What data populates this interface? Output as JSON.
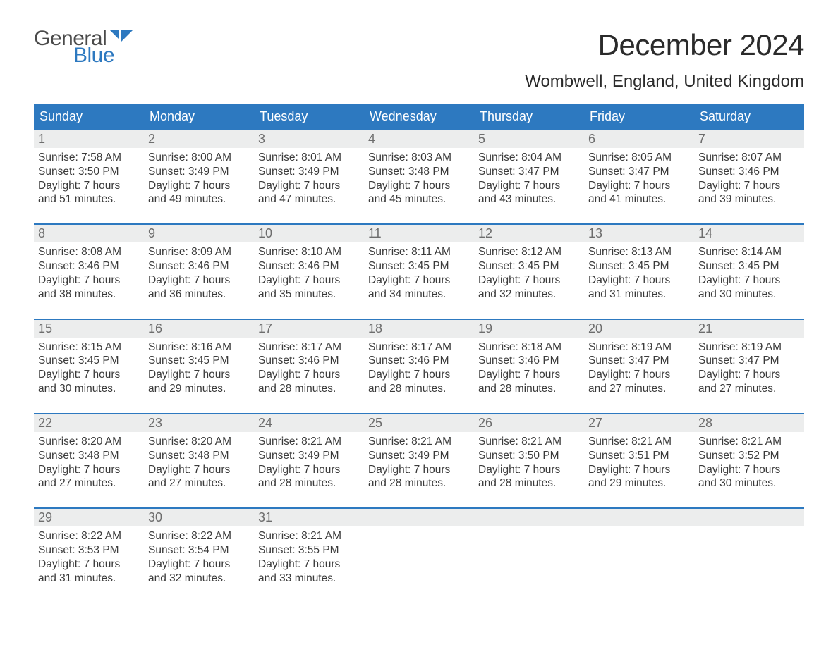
{
  "logo": {
    "text_general": "General",
    "text_blue": "Blue",
    "flag_color": "#2d79c0"
  },
  "title": "December 2024",
  "location": "Wombwell, England, United Kingdom",
  "colors": {
    "header_bg": "#2d79c0",
    "header_text": "#ffffff",
    "daynum_bg": "#eceded",
    "daynum_text": "#6d6d6d",
    "body_text": "#3a3a3a",
    "rule": "#2d79c0"
  },
  "day_headers": [
    "Sunday",
    "Monday",
    "Tuesday",
    "Wednesday",
    "Thursday",
    "Friday",
    "Saturday"
  ],
  "weeks": [
    [
      {
        "n": "1",
        "sunrise": "7:58 AM",
        "sunset": "3:50 PM",
        "dl1": "Daylight: 7 hours",
        "dl2": "and 51 minutes."
      },
      {
        "n": "2",
        "sunrise": "8:00 AM",
        "sunset": "3:49 PM",
        "dl1": "Daylight: 7 hours",
        "dl2": "and 49 minutes."
      },
      {
        "n": "3",
        "sunrise": "8:01 AM",
        "sunset": "3:49 PM",
        "dl1": "Daylight: 7 hours",
        "dl2": "and 47 minutes."
      },
      {
        "n": "4",
        "sunrise": "8:03 AM",
        "sunset": "3:48 PM",
        "dl1": "Daylight: 7 hours",
        "dl2": "and 45 minutes."
      },
      {
        "n": "5",
        "sunrise": "8:04 AM",
        "sunset": "3:47 PM",
        "dl1": "Daylight: 7 hours",
        "dl2": "and 43 minutes."
      },
      {
        "n": "6",
        "sunrise": "8:05 AM",
        "sunset": "3:47 PM",
        "dl1": "Daylight: 7 hours",
        "dl2": "and 41 minutes."
      },
      {
        "n": "7",
        "sunrise": "8:07 AM",
        "sunset": "3:46 PM",
        "dl1": "Daylight: 7 hours",
        "dl2": "and 39 minutes."
      }
    ],
    [
      {
        "n": "8",
        "sunrise": "8:08 AM",
        "sunset": "3:46 PM",
        "dl1": "Daylight: 7 hours",
        "dl2": "and 38 minutes."
      },
      {
        "n": "9",
        "sunrise": "8:09 AM",
        "sunset": "3:46 PM",
        "dl1": "Daylight: 7 hours",
        "dl2": "and 36 minutes."
      },
      {
        "n": "10",
        "sunrise": "8:10 AM",
        "sunset": "3:46 PM",
        "dl1": "Daylight: 7 hours",
        "dl2": "and 35 minutes."
      },
      {
        "n": "11",
        "sunrise": "8:11 AM",
        "sunset": "3:45 PM",
        "dl1": "Daylight: 7 hours",
        "dl2": "and 34 minutes."
      },
      {
        "n": "12",
        "sunrise": "8:12 AM",
        "sunset": "3:45 PM",
        "dl1": "Daylight: 7 hours",
        "dl2": "and 32 minutes."
      },
      {
        "n": "13",
        "sunrise": "8:13 AM",
        "sunset": "3:45 PM",
        "dl1": "Daylight: 7 hours",
        "dl2": "and 31 minutes."
      },
      {
        "n": "14",
        "sunrise": "8:14 AM",
        "sunset": "3:45 PM",
        "dl1": "Daylight: 7 hours",
        "dl2": "and 30 minutes."
      }
    ],
    [
      {
        "n": "15",
        "sunrise": "8:15 AM",
        "sunset": "3:45 PM",
        "dl1": "Daylight: 7 hours",
        "dl2": "and 30 minutes."
      },
      {
        "n": "16",
        "sunrise": "8:16 AM",
        "sunset": "3:45 PM",
        "dl1": "Daylight: 7 hours",
        "dl2": "and 29 minutes."
      },
      {
        "n": "17",
        "sunrise": "8:17 AM",
        "sunset": "3:46 PM",
        "dl1": "Daylight: 7 hours",
        "dl2": "and 28 minutes."
      },
      {
        "n": "18",
        "sunrise": "8:17 AM",
        "sunset": "3:46 PM",
        "dl1": "Daylight: 7 hours",
        "dl2": "and 28 minutes."
      },
      {
        "n": "19",
        "sunrise": "8:18 AM",
        "sunset": "3:46 PM",
        "dl1": "Daylight: 7 hours",
        "dl2": "and 28 minutes."
      },
      {
        "n": "20",
        "sunrise": "8:19 AM",
        "sunset": "3:47 PM",
        "dl1": "Daylight: 7 hours",
        "dl2": "and 27 minutes."
      },
      {
        "n": "21",
        "sunrise": "8:19 AM",
        "sunset": "3:47 PM",
        "dl1": "Daylight: 7 hours",
        "dl2": "and 27 minutes."
      }
    ],
    [
      {
        "n": "22",
        "sunrise": "8:20 AM",
        "sunset": "3:48 PM",
        "dl1": "Daylight: 7 hours",
        "dl2": "and 27 minutes."
      },
      {
        "n": "23",
        "sunrise": "8:20 AM",
        "sunset": "3:48 PM",
        "dl1": "Daylight: 7 hours",
        "dl2": "and 27 minutes."
      },
      {
        "n": "24",
        "sunrise": "8:21 AM",
        "sunset": "3:49 PM",
        "dl1": "Daylight: 7 hours",
        "dl2": "and 28 minutes."
      },
      {
        "n": "25",
        "sunrise": "8:21 AM",
        "sunset": "3:49 PM",
        "dl1": "Daylight: 7 hours",
        "dl2": "and 28 minutes."
      },
      {
        "n": "26",
        "sunrise": "8:21 AM",
        "sunset": "3:50 PM",
        "dl1": "Daylight: 7 hours",
        "dl2": "and 28 minutes."
      },
      {
        "n": "27",
        "sunrise": "8:21 AM",
        "sunset": "3:51 PM",
        "dl1": "Daylight: 7 hours",
        "dl2": "and 29 minutes."
      },
      {
        "n": "28",
        "sunrise": "8:21 AM",
        "sunset": "3:52 PM",
        "dl1": "Daylight: 7 hours",
        "dl2": "and 30 minutes."
      }
    ],
    [
      {
        "n": "29",
        "sunrise": "8:22 AM",
        "sunset": "3:53 PM",
        "dl1": "Daylight: 7 hours",
        "dl2": "and 31 minutes."
      },
      {
        "n": "30",
        "sunrise": "8:22 AM",
        "sunset": "3:54 PM",
        "dl1": "Daylight: 7 hours",
        "dl2": "and 32 minutes."
      },
      {
        "n": "31",
        "sunrise": "8:21 AM",
        "sunset": "3:55 PM",
        "dl1": "Daylight: 7 hours",
        "dl2": "and 33 minutes."
      },
      null,
      null,
      null,
      null
    ]
  ],
  "labels": {
    "sunrise": "Sunrise: ",
    "sunset": "Sunset: "
  }
}
